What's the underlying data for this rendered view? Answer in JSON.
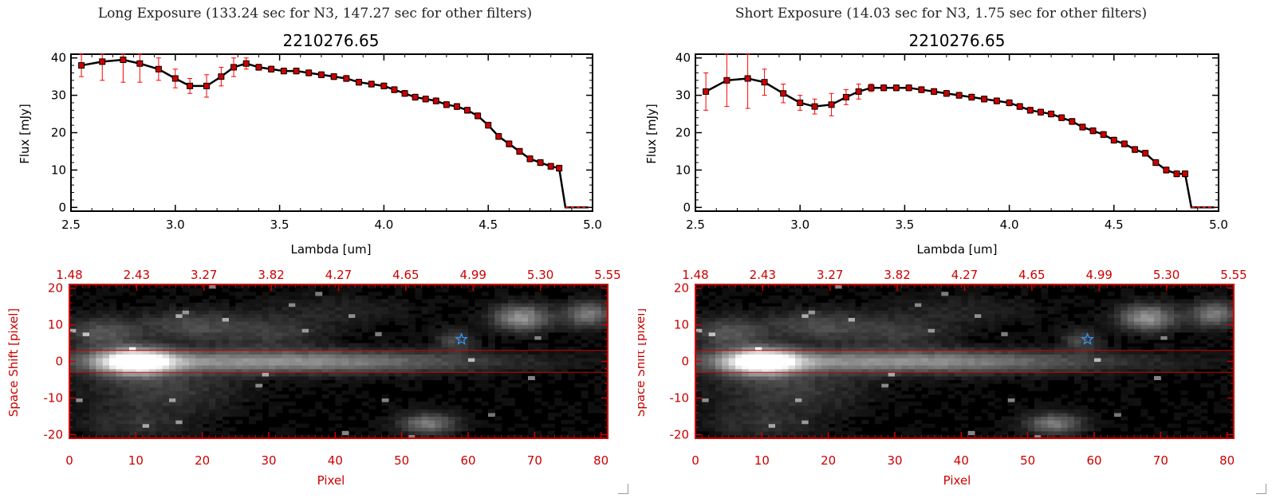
{
  "panels": [
    {
      "exposure_title": "Long Exposure (133.24 sec for N3, 147.27 sec for other filters)",
      "plot_title": "2210276.65",
      "spectrum_xlabel": "Lambda [um]",
      "spectrum_ylabel": "Flux [mJy]",
      "image_xlabel": "Pixel",
      "image_ylabel": "Space Shift [pixel]"
    },
    {
      "exposure_title": "Short Exposure (14.03 sec for N3, 1.75 sec for other filters)",
      "plot_title": "2210276.65",
      "spectrum_xlabel": "Lambda [um]",
      "spectrum_ylabel": "Flux [mJy]",
      "image_xlabel": "Pixel",
      "image_ylabel": "Space Shift [pixel]"
    }
  ],
  "colors": {
    "spectrum_line": "#000000",
    "marker": "#cc0000",
    "error_bar": "#ff0000",
    "image_axes": "#cc0000",
    "extraction_lines": "#cc0000",
    "star_marker": "#3399ff"
  },
  "chart_data": [
    {
      "type": "line",
      "title": "2210276.65",
      "xlabel": "Lambda [um]",
      "ylabel": "Flux [mJy]",
      "xlim": [
        2.5,
        5.0
      ],
      "ylim": [
        -1,
        41
      ],
      "xticks": [
        "2.5",
        "3.0",
        "3.5",
        "4.0",
        "4.5",
        "5.0"
      ],
      "yticks": [
        "0",
        "10",
        "20",
        "30",
        "40"
      ],
      "x": [
        2.55,
        2.65,
        2.75,
        2.83,
        2.92,
        3.0,
        3.07,
        3.15,
        3.22,
        3.28,
        3.34,
        3.4,
        3.46,
        3.52,
        3.58,
        3.64,
        3.7,
        3.76,
        3.82,
        3.88,
        3.94,
        4.0,
        4.05,
        4.1,
        4.15,
        4.2,
        4.25,
        4.3,
        4.35,
        4.4,
        4.45,
        4.5,
        4.55,
        4.6,
        4.65,
        4.7,
        4.75,
        4.8,
        4.84,
        4.98
      ],
      "y": [
        38,
        39,
        39.5,
        38.5,
        37,
        34.5,
        32.5,
        32.5,
        35,
        37.5,
        38.5,
        37.5,
        37,
        36.5,
        36.5,
        36,
        35.5,
        35,
        34.5,
        33.5,
        33,
        32.5,
        31.5,
        30.5,
        29.5,
        29,
        28.5,
        27.5,
        27,
        26,
        24.5,
        22,
        19,
        17,
        15,
        13,
        12,
        11,
        10.5,
        0
      ],
      "yerr": [
        3,
        5,
        6,
        5,
        3,
        2.5,
        2,
        3,
        2.5,
        2.5,
        1.5,
        0.8,
        0.8,
        0.8,
        0.8,
        0.8,
        0.8,
        0.8,
        0.8,
        0.8,
        0.8,
        0.8,
        0.8,
        0.8,
        0.8,
        0.8,
        0.8,
        0.8,
        0.8,
        0.8,
        0.8,
        0.8,
        0.8,
        0.8,
        0.8,
        0.8,
        0.8,
        0.8,
        0.8,
        0
      ]
    },
    {
      "type": "heatmap",
      "xlabel": "Pixel",
      "ylabel": "Space Shift [pixel]",
      "xlim": [
        0,
        81
      ],
      "ylim": [
        -21,
        21
      ],
      "xticks": [
        "0",
        "10",
        "20",
        "30",
        "40",
        "50",
        "60",
        "70",
        "80"
      ],
      "yticks": [
        "-20",
        "-10",
        "0",
        "10",
        "20"
      ],
      "top_ticks": [
        "1.48",
        "2.43",
        "3.27",
        "3.82",
        "4.27",
        "4.65",
        "4.99",
        "5.30",
        "5.55"
      ],
      "extraction_bounds": [
        -3,
        3
      ],
      "star_position": [
        59,
        6
      ]
    },
    {
      "type": "line",
      "title": "2210276.65",
      "xlabel": "Lambda [um]",
      "ylabel": "Flux [mJy]",
      "xlim": [
        2.5,
        5.0
      ],
      "ylim": [
        -1,
        41
      ],
      "xticks": [
        "2.5",
        "3.0",
        "3.5",
        "4.0",
        "4.5",
        "5.0"
      ],
      "yticks": [
        "0",
        "10",
        "20",
        "30",
        "40"
      ],
      "x": [
        2.55,
        2.65,
        2.75,
        2.83,
        2.92,
        3.0,
        3.07,
        3.15,
        3.22,
        3.28,
        3.34,
        3.4,
        3.46,
        3.52,
        3.58,
        3.64,
        3.7,
        3.76,
        3.82,
        3.88,
        3.94,
        4.0,
        4.05,
        4.1,
        4.15,
        4.2,
        4.25,
        4.3,
        4.35,
        4.4,
        4.45,
        4.5,
        4.55,
        4.6,
        4.65,
        4.7,
        4.75,
        4.8,
        4.84,
        4.98
      ],
      "y": [
        31,
        34,
        34.5,
        33.5,
        30.5,
        28,
        27,
        27.5,
        29.5,
        31,
        32,
        32,
        32,
        32,
        31.5,
        31,
        30.5,
        30,
        29.5,
        29,
        28.5,
        28,
        27,
        26,
        25.5,
        25,
        24,
        23,
        21.5,
        20.5,
        19.5,
        18,
        17,
        15.5,
        14.5,
        12,
        10,
        9,
        9,
        0
      ],
      "yerr": [
        5,
        7,
        8,
        3.5,
        2.5,
        2,
        2,
        3,
        2,
        2,
        1,
        0.8,
        0.8,
        0.8,
        0.8,
        0.8,
        0.8,
        0.8,
        0.8,
        0.8,
        0.8,
        0.8,
        0.8,
        0.8,
        0.8,
        0.8,
        0.8,
        0.8,
        0.8,
        0.8,
        0.8,
        0.8,
        0.8,
        0.8,
        0.8,
        0.8,
        0.8,
        0.8,
        0.8,
        0
      ]
    },
    {
      "type": "heatmap",
      "xlabel": "Pixel",
      "ylabel": "Space Shift [pixel]",
      "xlim": [
        0,
        81
      ],
      "ylim": [
        -21,
        21
      ],
      "xticks": [
        "0",
        "10",
        "20",
        "30",
        "40",
        "50",
        "60",
        "70",
        "80"
      ],
      "yticks": [
        "-20",
        "-10",
        "0",
        "10",
        "20"
      ],
      "top_ticks": [
        "1.48",
        "2.43",
        "3.27",
        "3.82",
        "4.27",
        "4.65",
        "4.99",
        "5.30",
        "5.55"
      ],
      "extraction_bounds": [
        -3,
        3
      ],
      "star_position": [
        59,
        6
      ]
    }
  ]
}
